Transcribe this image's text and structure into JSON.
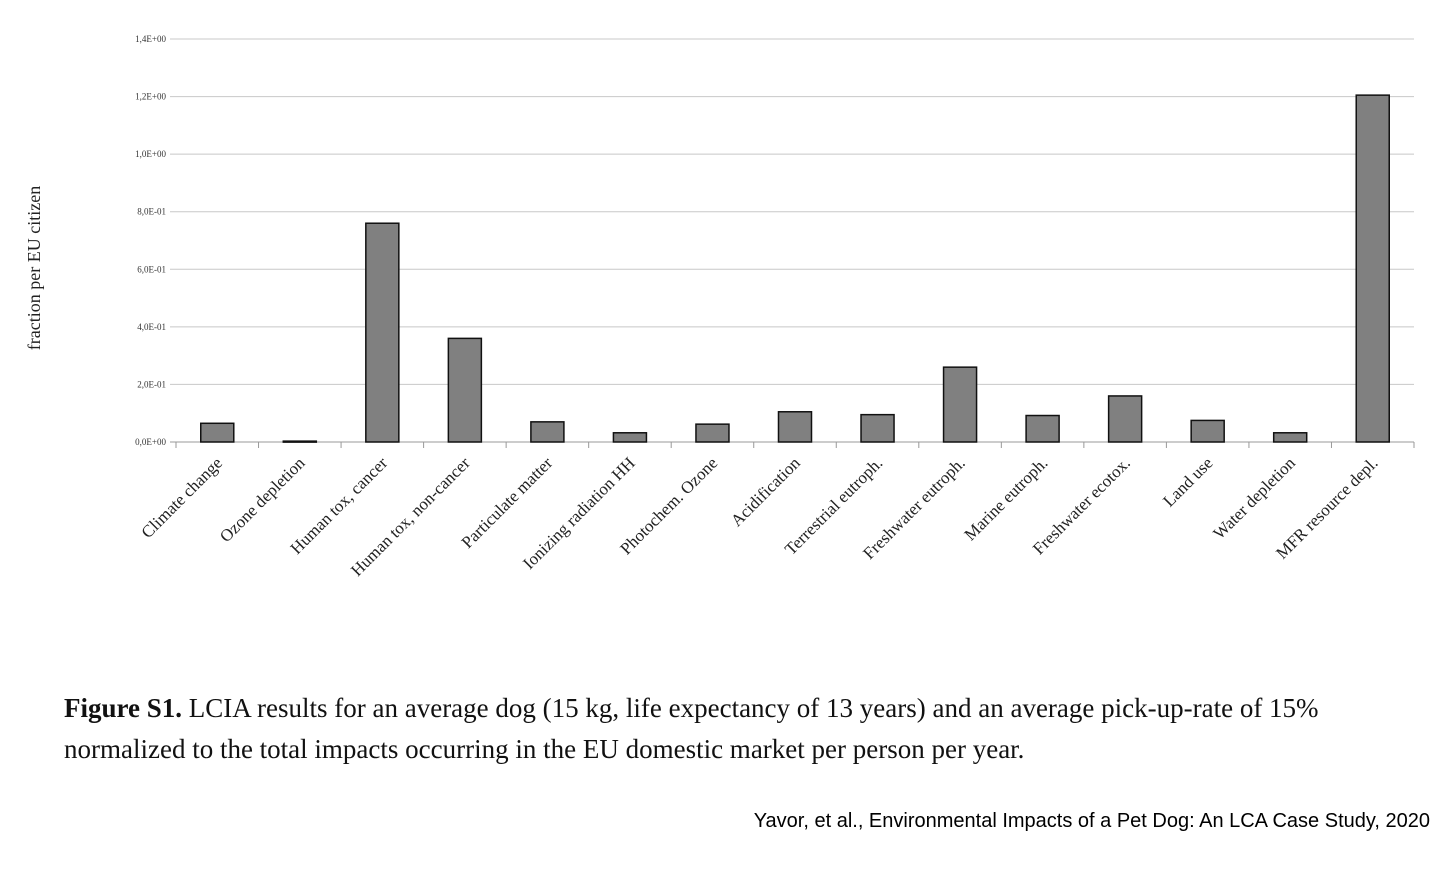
{
  "chart_data": {
    "type": "bar",
    "ylabel": "fraction per EU citizen",
    "ylim": [
      0,
      1.4
    ],
    "grid": true,
    "yticks": [
      0,
      0.2,
      0.4,
      0.6,
      0.8,
      1.0,
      1.2,
      1.4
    ],
    "ytick_labels": [
      "0,0E+00",
      "2,0E-01",
      "4,0E-01",
      "6,0E-01",
      "8,0E-01",
      "1,0E+00",
      "1,2E+00",
      "1,4E+00"
    ],
    "categories": [
      "Climate change",
      "Ozone depletion",
      "Human tox, cancer",
      "Human tox, non-cancer",
      "Particulate matter",
      "Ionizing radiation HH",
      "Photochem. Ozone",
      "Acidification",
      "Terrestrial eutroph.",
      "Freshwater eutroph.",
      "Marine eutroph.",
      "Freshwater ecotox.",
      "Land use",
      "Water depletion",
      "MFR resource depl."
    ],
    "values": [
      0.065,
      0.003,
      0.76,
      0.36,
      0.07,
      0.032,
      0.062,
      0.105,
      0.095,
      0.26,
      0.092,
      0.16,
      0.075,
      0.032,
      1.205
    ],
    "bar_color": "#808080"
  },
  "caption": {
    "label": "Figure S1.",
    "text": " LCIA results for an average dog (15 kg, life expectancy of 13 years) and an average pick-up-rate of 15% normalized to the total impacts occurring in the EU domestic market per person per year."
  },
  "credit": "Yavor, et al., Environmental Impacts of a Pet Dog: An LCA Case Study, 2020"
}
